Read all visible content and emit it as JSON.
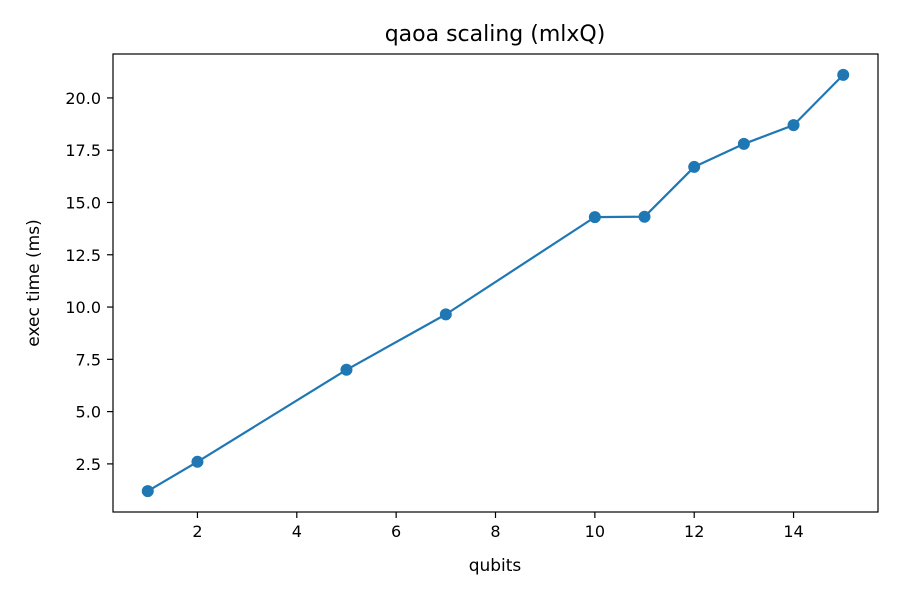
{
  "chart_data": {
    "type": "line",
    "title": "qaoa scaling (mlxQ)",
    "xlabel": "qubits",
    "ylabel": "exec time (ms)",
    "xlim": [
      0.3,
      15.7
    ],
    "ylim": [
      0.2,
      22.1
    ],
    "x_ticks": [
      2,
      4,
      6,
      8,
      10,
      12,
      14
    ],
    "x_tick_labels": [
      "2",
      "4",
      "6",
      "8",
      "10",
      "12",
      "14"
    ],
    "y_ticks": [
      2.5,
      5.0,
      7.5,
      10.0,
      12.5,
      15.0,
      17.5,
      20.0
    ],
    "y_tick_labels": [
      "2.5",
      "5.0",
      "7.5",
      "10.0",
      "12.5",
      "15.0",
      "17.5",
      "20.0"
    ],
    "grid": false,
    "legend": "none",
    "series": [
      {
        "color": "#1f77b4",
        "marker": "circle",
        "x": [
          1,
          2,
          5,
          7,
          10,
          11,
          12,
          13,
          14,
          15
        ],
        "y": [
          1.2,
          2.6,
          7.0,
          9.65,
          14.3,
          14.32,
          16.7,
          17.8,
          18.7,
          21.1
        ]
      }
    ]
  }
}
